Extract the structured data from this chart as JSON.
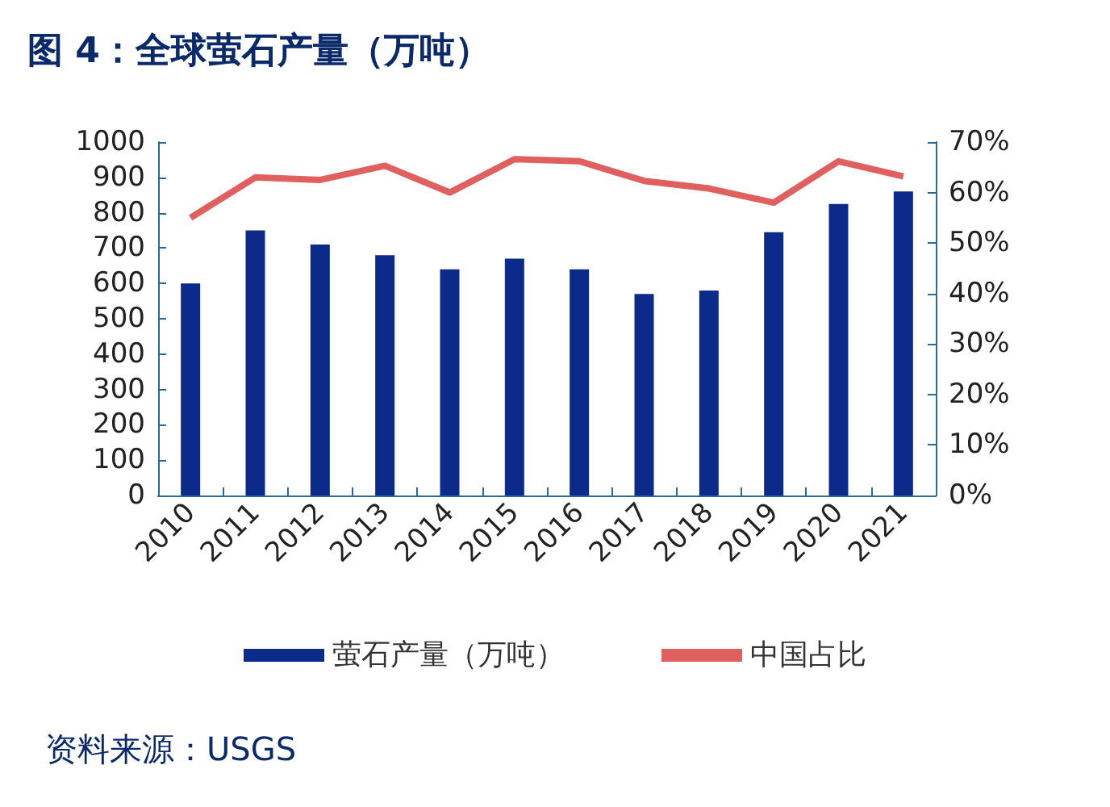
{
  "chart_data": {
    "type": "bar",
    "title": "图 4：全球萤石产量（万吨）",
    "categories": [
      "2010",
      "2011",
      "2012",
      "2013",
      "2014",
      "2015",
      "2016",
      "2017",
      "2018",
      "2019",
      "2020",
      "2021"
    ],
    "series": [
      {
        "name": "萤石产量（万吨）",
        "color": "#0b2a8a",
        "values": [
          600,
          750,
          710,
          680,
          640,
          670,
          640,
          570,
          580,
          745,
          825,
          860
        ]
      },
      {
        "name": "中国占比",
        "type": "line",
        "axis": "y2",
        "color": "#e06060",
        "values": [
          55,
          63,
          62.5,
          65.3,
          60,
          66.6,
          66.2,
          62.3,
          60.8,
          58,
          66.2,
          63.2
        ]
      }
    ],
    "ylim": [
      0,
      1000
    ],
    "yticks": [
      0,
      100,
      200,
      300,
      400,
      500,
      600,
      700,
      800,
      900,
      1000
    ],
    "y2lim": [
      0,
      70
    ],
    "y2ticks": [
      {
        "value": 0,
        "label": "0%"
      },
      {
        "value": 10,
        "label": "10%"
      },
      {
        "value": 20,
        "label": "20%"
      },
      {
        "value": 30,
        "label": "30%"
      },
      {
        "value": 40,
        "label": "40%"
      },
      {
        "value": 50,
        "label": "50%"
      },
      {
        "value": 60,
        "label": "60%"
      },
      {
        "value": 70,
        "label": "70%"
      }
    ],
    "grid": false,
    "legend": "bottom",
    "marker": "none",
    "annotations": [
      "资料来源：USGS"
    ]
  }
}
